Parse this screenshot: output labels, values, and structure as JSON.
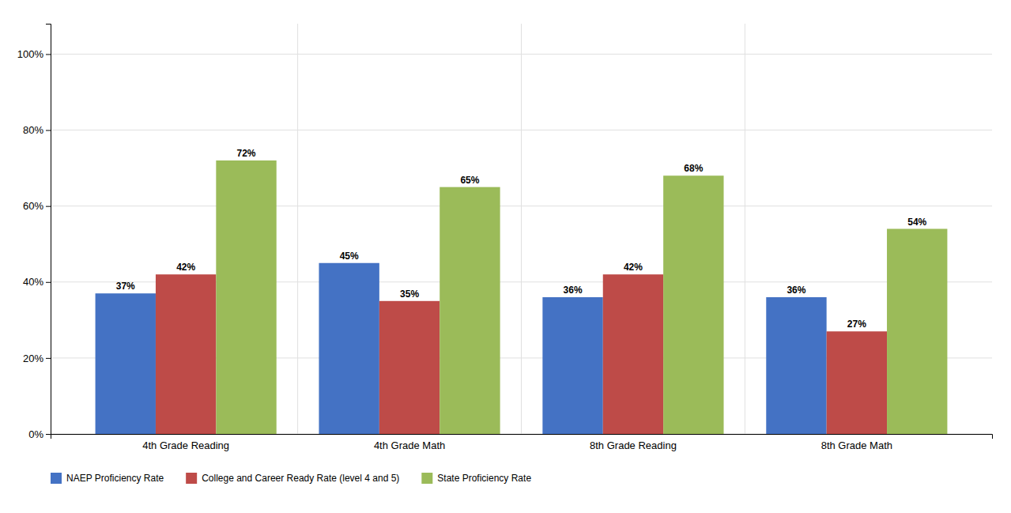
{
  "chart_data": {
    "type": "bar",
    "categories": [
      "4th Grade Reading",
      "4th Grade Math",
      "8th Grade Reading",
      "8th Grade Math"
    ],
    "series": [
      {
        "name": "NAEP Proficiency Rate",
        "color": "#4472C4",
        "values": [
          0.37,
          0.45,
          0.36,
          0.36
        ],
        "value_labels": [
          "37%",
          "45%",
          "36%",
          "36%"
        ]
      },
      {
        "name": "College and Career Ready Rate (level 4 and 5)",
        "color": "#BE4B48",
        "values": [
          0.42,
          0.35,
          0.42,
          0.27
        ],
        "value_labels": [
          "42%",
          "35%",
          "42%",
          "27%"
        ]
      },
      {
        "name": "State Proficiency Rate",
        "color": "#9BBB59",
        "values": [
          0.72,
          0.65,
          0.68,
          0.54
        ],
        "value_labels": [
          "72%",
          "65%",
          "68%",
          "54%"
        ]
      }
    ],
    "ylim": [
      0,
      1.08
    ],
    "yticks": [
      {
        "value": 0,
        "label": "0%"
      },
      {
        "value": 0.2,
        "label": "20%"
      },
      {
        "value": 0.4,
        "label": "40%"
      },
      {
        "value": 0.6,
        "label": "60%"
      },
      {
        "value": 0.8,
        "label": "80%"
      },
      {
        "value": 1.0,
        "label": "100%"
      }
    ],
    "grid": true,
    "legend": "bottom",
    "data_labels": true
  }
}
